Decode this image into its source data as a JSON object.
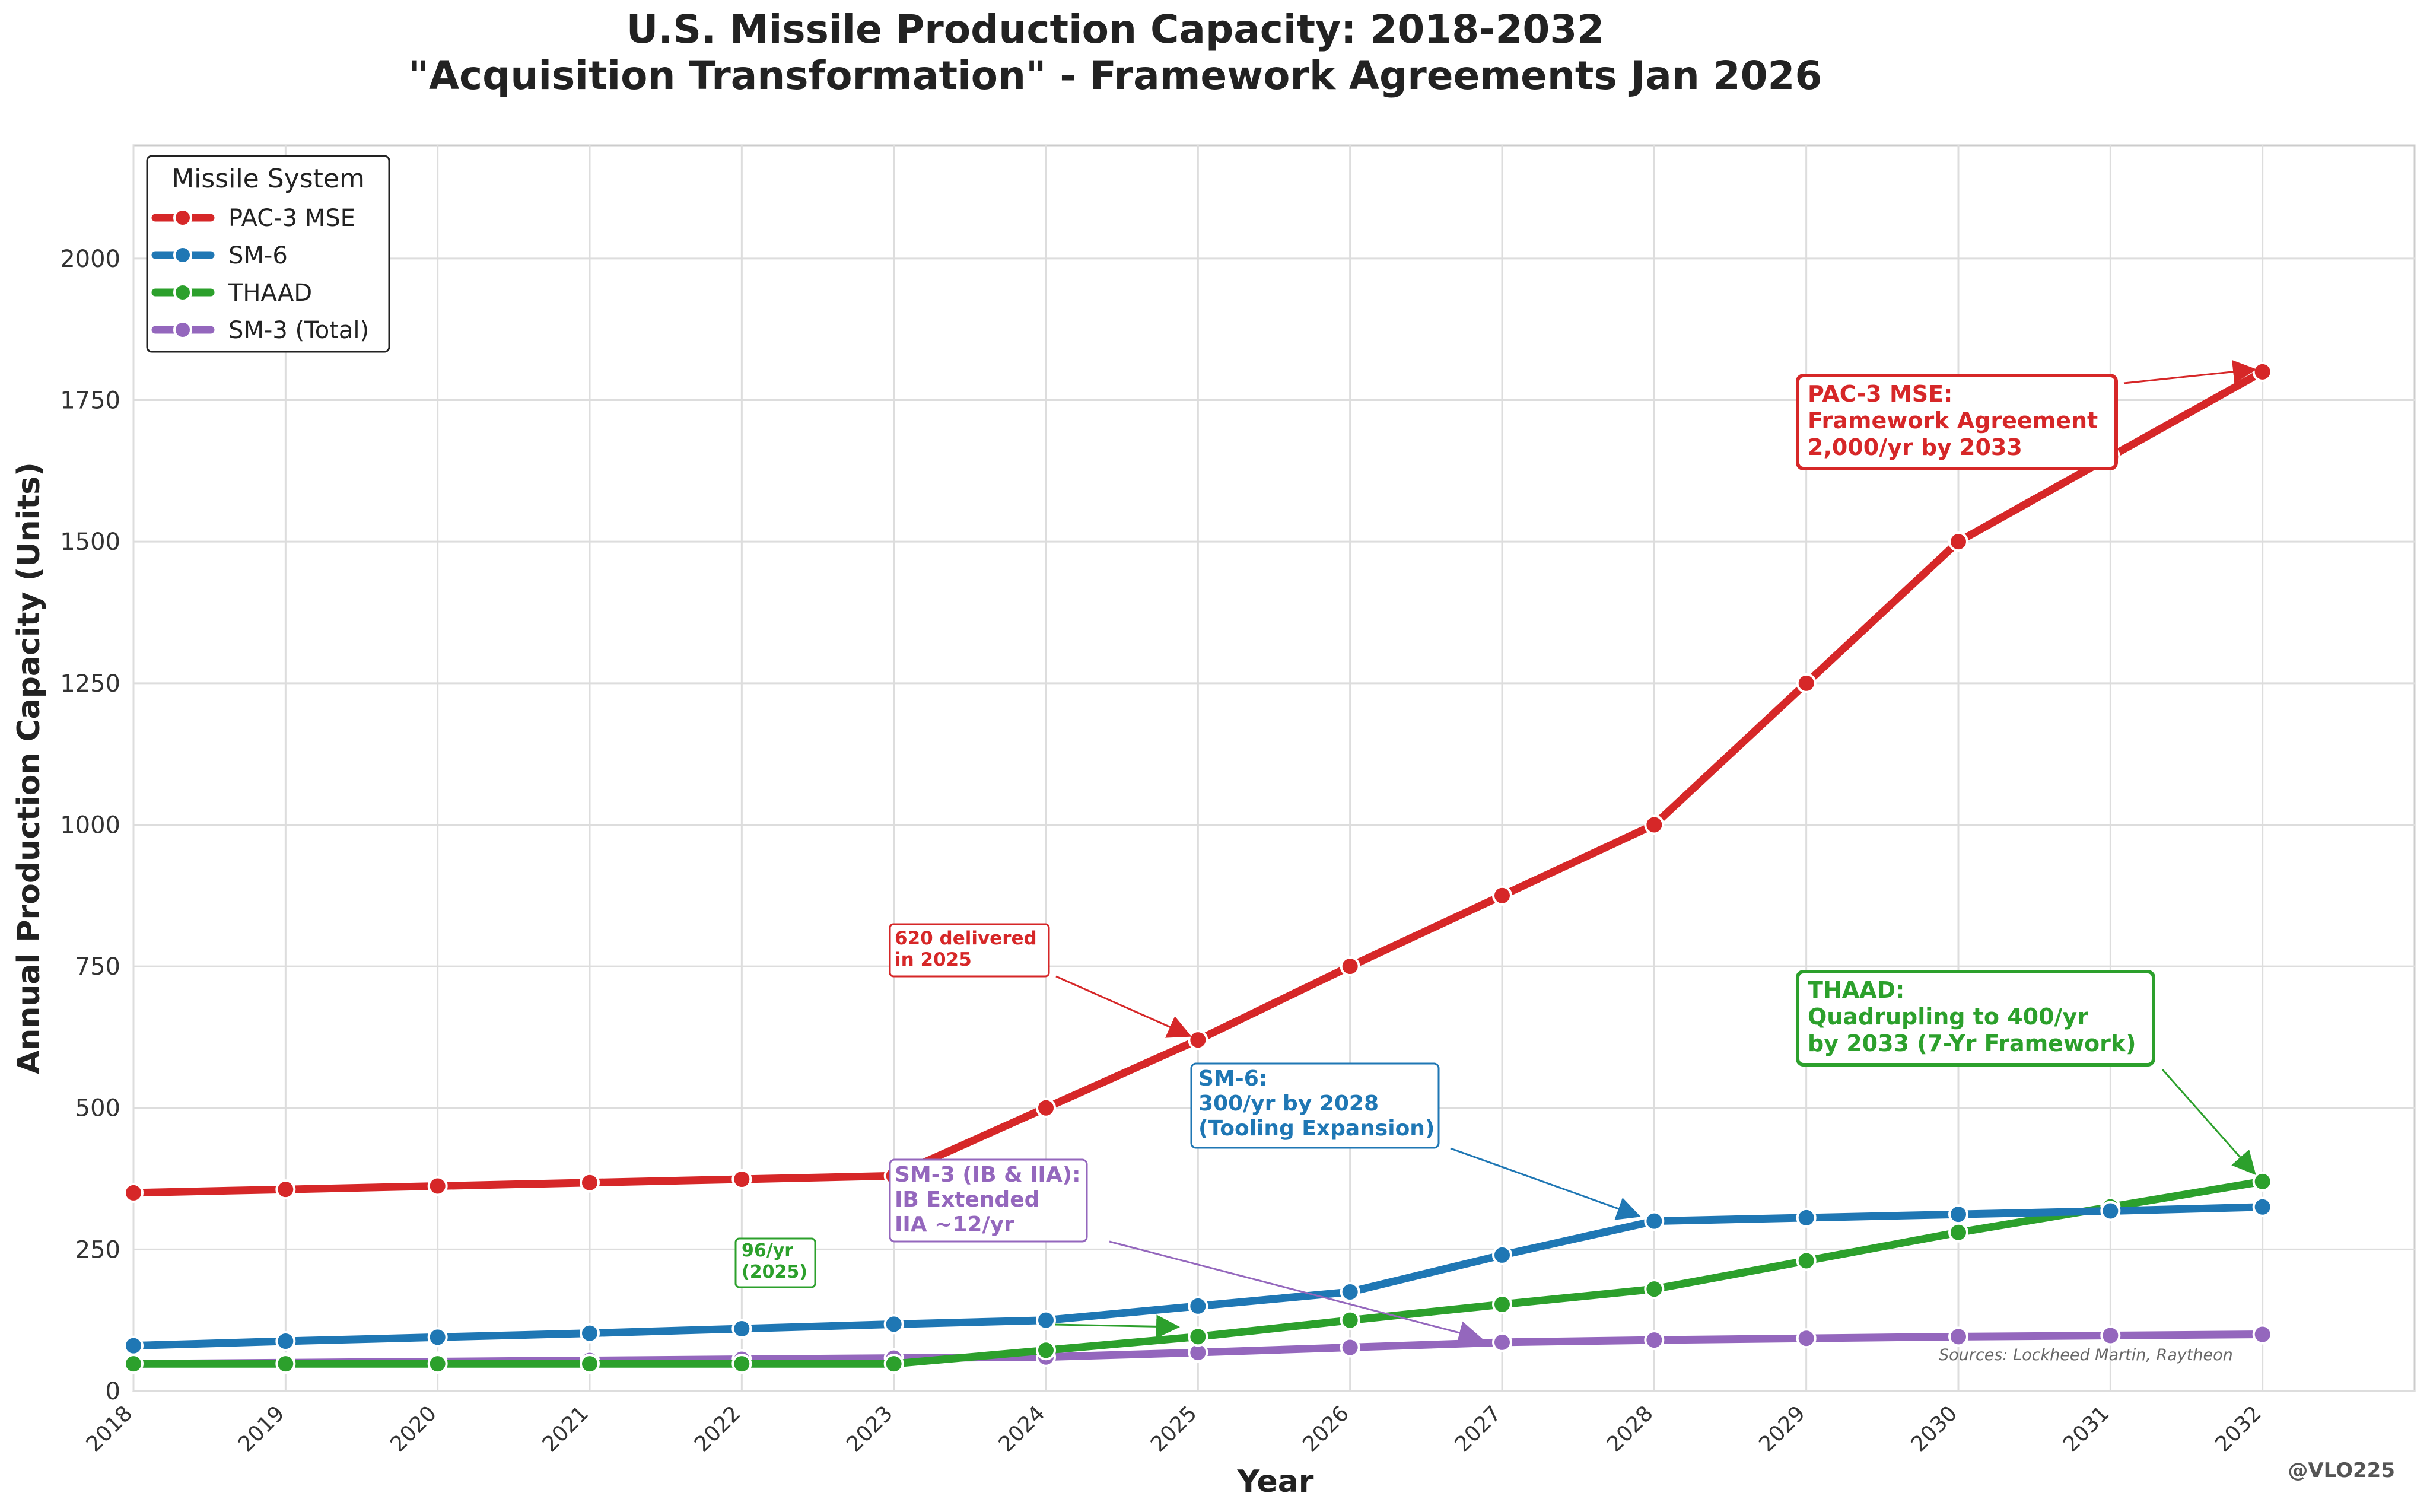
{
  "chart_data": {
    "type": "line",
    "title": "U.S. Missile Production Capacity: 2018-2032",
    "subtitle": "\"Acquisition Transformation\" - Framework Agreements Jan 2026",
    "xlabel": "Year",
    "ylabel": "Annual Production Capacity (Units)",
    "ylim": [
      0,
      2200
    ],
    "xlim": [
      2018,
      2033
    ],
    "yticks": [
      0,
      250,
      500,
      750,
      1000,
      1250,
      1500,
      1750,
      2000
    ],
    "x": [
      2018,
      2019,
      2020,
      2021,
      2022,
      2023,
      2024,
      2025,
      2026,
      2027,
      2028,
      2029,
      2030,
      2031,
      2032
    ],
    "x_tick_labels": [
      "2018",
      "2019",
      "2020",
      "2021",
      "2022",
      "2023",
      "2024",
      "2025",
      "2026",
      "2027",
      "2028",
      "2029",
      "2030",
      "2031",
      "2032"
    ],
    "grid": true,
    "legend": {
      "title": "Missile System",
      "placement": "top-left"
    },
    "series": [
      {
        "name": "PAC-3 MSE",
        "color": "#d62728",
        "values": [
          350,
          356,
          362,
          368,
          374,
          380,
          500,
          620,
          750,
          875,
          1000,
          1250,
          1500,
          1650,
          1800
        ]
      },
      {
        "name": "SM-6",
        "color": "#1f77b4",
        "values": [
          80,
          88,
          95,
          102,
          110,
          118,
          125,
          150,
          175,
          240,
          300,
          306,
          312,
          318,
          325
        ]
      },
      {
        "name": "THAAD",
        "color": "#2ca02c",
        "values": [
          48,
          48,
          48,
          48,
          48,
          48,
          72,
          96,
          125,
          153,
          180,
          230,
          280,
          325,
          370
        ]
      },
      {
        "name": "SM-3 (Total)",
        "color": "#9467bd",
        "values": [
          48,
          50,
          52,
          54,
          56,
          58,
          60,
          68,
          77,
          86,
          90,
          93,
          96,
          98,
          100
        ]
      }
    ],
    "annotations": [
      {
        "lines": [
          "PAC-3 MSE:",
          "Framework Agreement",
          "2,000/yr by 2033"
        ],
        "color": "#d62728"
      },
      {
        "lines": [
          "620 delivered",
          "in 2025"
        ],
        "color": "#d62728"
      },
      {
        "lines": [
          "SM-6:",
          "300/yr by 2028",
          "(Tooling Expansion)"
        ],
        "color": "#1f77b4"
      },
      {
        "lines": [
          "THAAD:",
          "Quadrupling to 400/yr",
          "by 2033 (7-Yr Framework)"
        ],
        "color": "#2ca02c"
      },
      {
        "lines": [
          "SM-3 (IB & IIA):",
          "IB Extended",
          "IIA ~12/yr"
        ],
        "color": "#9467bd"
      },
      {
        "lines": [
          "96/yr",
          "(2025)"
        ],
        "color": "#2ca02c"
      }
    ],
    "source_note": "Sources: Lockheed Martin, Raytheon",
    "handle": "@VLO225"
  }
}
